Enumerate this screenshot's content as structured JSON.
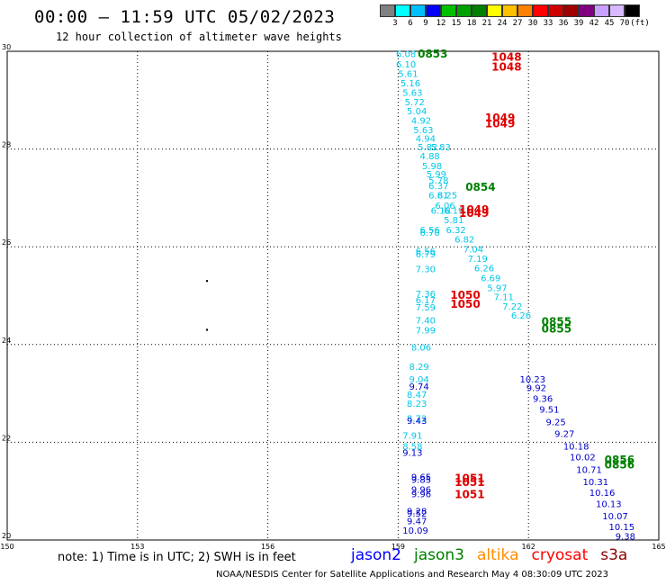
{
  "header": {
    "title": "00:00 – 11:59 UTC 05/02/2023",
    "subtitle": "12 hour collection of altimeter wave heights"
  },
  "colorbar": {
    "unit": "(ft)",
    "ticks": [
      "3",
      "6",
      "9",
      "12",
      "15",
      "18",
      "21",
      "24",
      "27",
      "30",
      "33",
      "36",
      "39",
      "42",
      "45",
      "70"
    ],
    "colors": [
      "#808080",
      "#00ffff",
      "#00bfff",
      "#0000ff",
      "#00c000",
      "#00a000",
      "#008000",
      "#ffff00",
      "#ffc000",
      "#ff8000",
      "#ff0000",
      "#d00000",
      "#a00000",
      "#800080",
      "#c8a0ff",
      "#d8b8ff",
      "#000000"
    ]
  },
  "footer": {
    "note": "note:  1) Time is in UTC;  2) SWH is in feet",
    "satellites": [
      {
        "name": "jason2",
        "color": "#0000ff"
      },
      {
        "name": "jason3",
        "color": "#008000"
      },
      {
        "name": "altika",
        "color": "#ff8c00"
      },
      {
        "name": "cryosat",
        "color": "#ff0000"
      },
      {
        "name": "s3a",
        "color": "#8b0000"
      }
    ],
    "credit": "NOAA/NESDIS Center for Satellite Applications and Research    May  4 08:30:09 UTC 2023"
  },
  "chart_data": {
    "type": "scatter",
    "title": "00:00 – 11:59 UTC 05/02/2023",
    "subtitle": "12 hour collection of altimeter wave heights",
    "xlim": [
      150,
      165
    ],
    "ylim": [
      20,
      30
    ],
    "xticks": [
      "150",
      "153",
      "156",
      "159",
      "162",
      "165"
    ],
    "yticks": [
      "20",
      "22",
      "24",
      "26",
      "28",
      "30"
    ],
    "grid": true,
    "series": [
      {
        "name": "cyan-track",
        "color": "#00c8e8",
        "points": [
          {
            "x": 158.95,
            "y": 29.95,
            "v": "6.08"
          },
          {
            "x": 158.95,
            "y": 29.74,
            "v": "6.10"
          },
          {
            "x": 159.0,
            "y": 29.55,
            "v": "5.61"
          },
          {
            "x": 159.05,
            "y": 29.36,
            "v": "5.16"
          },
          {
            "x": 159.1,
            "y": 29.16,
            "v": "5.63"
          },
          {
            "x": 159.15,
            "y": 28.97,
            "v": "5.72"
          },
          {
            "x": 159.2,
            "y": 28.78,
            "v": "5.04"
          },
          {
            "x": 159.3,
            "y": 28.59,
            "v": "4.92"
          },
          {
            "x": 159.35,
            "y": 28.4,
            "v": "5.63"
          },
          {
            "x": 159.4,
            "y": 28.22,
            "v": "4.94"
          },
          {
            "x": 159.45,
            "y": 28.05,
            "v": "5.82"
          },
          {
            "x": 159.75,
            "y": 28.05,
            "v": "5.83"
          },
          {
            "x": 159.5,
            "y": 27.86,
            "v": "4.88"
          },
          {
            "x": 159.55,
            "y": 27.66,
            "v": "5.98"
          },
          {
            "x": 159.65,
            "y": 27.5,
            "v": "5.99"
          },
          {
            "x": 159.7,
            "y": 27.37,
            "v": "5.78"
          },
          {
            "x": 159.7,
            "y": 27.26,
            "v": "6.37"
          },
          {
            "x": 159.7,
            "y": 27.06,
            "v": "6.81"
          },
          {
            "x": 159.9,
            "y": 27.06,
            "v": "6.25"
          },
          {
            "x": 159.85,
            "y": 26.85,
            "v": "6.06"
          },
          {
            "x": 159.75,
            "y": 26.75,
            "v": "6.18"
          },
          {
            "x": 160.05,
            "y": 26.75,
            "v": "6.19"
          },
          {
            "x": 160.05,
            "y": 26.56,
            "v": "5.81"
          },
          {
            "x": 159.5,
            "y": 26.35,
            "v": "6.56"
          },
          {
            "x": 159.5,
            "y": 26.3,
            "v": "6.70"
          },
          {
            "x": 160.1,
            "y": 26.35,
            "v": "6.32"
          },
          {
            "x": 160.3,
            "y": 26.16,
            "v": "6.82"
          },
          {
            "x": 160.5,
            "y": 25.96,
            "v": "7.04"
          },
          {
            "x": 159.4,
            "y": 25.92,
            "v": "6.56"
          },
          {
            "x": 159.4,
            "y": 25.86,
            "v": "6.79"
          },
          {
            "x": 160.6,
            "y": 25.76,
            "v": "7.19"
          },
          {
            "x": 159.4,
            "y": 25.55,
            "v": "7.30"
          },
          {
            "x": 160.75,
            "y": 25.57,
            "v": "6.26"
          },
          {
            "x": 160.9,
            "y": 25.37,
            "v": "6.69"
          },
          {
            "x": 161.05,
            "y": 25.17,
            "v": "5.97"
          },
          {
            "x": 159.4,
            "y": 25.05,
            "v": "7.36"
          },
          {
            "x": 161.2,
            "y": 24.98,
            "v": "7.11"
          },
          {
            "x": 159.4,
            "y": 24.92,
            "v": "6.17"
          },
          {
            "x": 159.4,
            "y": 24.77,
            "v": "7.59"
          },
          {
            "x": 161.4,
            "y": 24.79,
            "v": "7.22"
          },
          {
            "x": 161.6,
            "y": 24.6,
            "v": "6.26"
          },
          {
            "x": 159.4,
            "y": 24.5,
            "v": "7.40"
          },
          {
            "x": 159.4,
            "y": 24.3,
            "v": "7.99"
          },
          {
            "x": 159.3,
            "y": 23.95,
            "v": "8.06"
          },
          {
            "x": 159.25,
            "y": 23.55,
            "v": "8.29"
          },
          {
            "x": 159.25,
            "y": 23.3,
            "v": "9.04"
          },
          {
            "x": 159.2,
            "y": 22.98,
            "v": "8.47"
          },
          {
            "x": 159.2,
            "y": 22.8,
            "v": "8.23"
          },
          {
            "x": 159.2,
            "y": 22.5,
            "v": "8.72"
          },
          {
            "x": 159.1,
            "y": 22.15,
            "v": "7.91"
          },
          {
            "x": 159.1,
            "y": 21.92,
            "v": "8.58"
          }
        ]
      },
      {
        "name": "blue-track",
        "color": "#0000cc",
        "points": [
          {
            "x": 161.8,
            "y": 23.3,
            "v": "10.23"
          },
          {
            "x": 161.95,
            "y": 23.12,
            "v": "9.92"
          },
          {
            "x": 162.1,
            "y": 22.9,
            "v": "9.36"
          },
          {
            "x": 162.25,
            "y": 22.68,
            "v": "9.51"
          },
          {
            "x": 162.4,
            "y": 22.42,
            "v": "9.25"
          },
          {
            "x": 162.6,
            "y": 22.18,
            "v": "9.27"
          },
          {
            "x": 162.8,
            "y": 21.92,
            "v": "10.18"
          },
          {
            "x": 162.95,
            "y": 21.7,
            "v": "10.02"
          },
          {
            "x": 163.1,
            "y": 21.45,
            "v": "10.71"
          },
          {
            "x": 163.25,
            "y": 21.2,
            "v": "10.31"
          },
          {
            "x": 163.4,
            "y": 20.98,
            "v": "10.16"
          },
          {
            "x": 163.55,
            "y": 20.75,
            "v": "10.13"
          },
          {
            "x": 163.7,
            "y": 20.5,
            "v": "10.07"
          },
          {
            "x": 163.85,
            "y": 20.28,
            "v": "10.15"
          },
          {
            "x": 164.0,
            "y": 20.08,
            "v": "9.38"
          },
          {
            "x": 159.25,
            "y": 23.15,
            "v": "9.74"
          },
          {
            "x": 159.2,
            "y": 22.45,
            "v": "9.43"
          },
          {
            "x": 159.1,
            "y": 21.8,
            "v": "9.13"
          },
          {
            "x": 159.3,
            "y": 21.3,
            "v": "9.65"
          },
          {
            "x": 159.3,
            "y": 21.24,
            "v": "9.85"
          },
          {
            "x": 159.3,
            "y": 21.04,
            "v": "9.96"
          },
          {
            "x": 159.3,
            "y": 20.95,
            "v": "9.96"
          },
          {
            "x": 159.2,
            "y": 20.6,
            "v": "9.28"
          },
          {
            "x": 159.2,
            "y": 20.55,
            "v": "9.52"
          },
          {
            "x": 159.2,
            "y": 20.4,
            "v": "9.47"
          },
          {
            "x": 159.1,
            "y": 20.2,
            "v": "10.09"
          }
        ]
      }
    ],
    "time_labels": [
      {
        "x": 159.45,
        "y": 29.96,
        "t": "0853",
        "color": "#008000"
      },
      {
        "x": 161.15,
        "y": 29.9,
        "t": "1048",
        "color": "#e00000"
      },
      {
        "x": 161.15,
        "y": 29.7,
        "t": "1048",
        "color": "#e00000"
      },
      {
        "x": 161.0,
        "y": 28.66,
        "t": "1049",
        "color": "#e00000"
      },
      {
        "x": 161.0,
        "y": 28.54,
        "t": "1049",
        "color": "#e00000"
      },
      {
        "x": 160.55,
        "y": 27.24,
        "t": "0854",
        "color": "#008000"
      },
      {
        "x": 160.4,
        "y": 26.78,
        "t": "1049",
        "color": "#e00000"
      },
      {
        "x": 160.4,
        "y": 26.7,
        "t": "1049",
        "color": "#e00000"
      },
      {
        "x": 160.2,
        "y": 25.03,
        "t": "1050",
        "color": "#e00000"
      },
      {
        "x": 160.2,
        "y": 24.84,
        "t": "1050",
        "color": "#e00000"
      },
      {
        "x": 162.3,
        "y": 24.48,
        "t": "0855",
        "color": "#008000"
      },
      {
        "x": 162.3,
        "y": 24.34,
        "t": "0855",
        "color": "#008000"
      },
      {
        "x": 163.75,
        "y": 21.66,
        "t": "0856",
        "color": "#008000"
      },
      {
        "x": 163.75,
        "y": 21.56,
        "t": "0856",
        "color": "#008000"
      },
      {
        "x": 160.3,
        "y": 21.28,
        "t": "1051",
        "color": "#e00000"
      },
      {
        "x": 160.3,
        "y": 21.2,
        "t": "1051",
        "color": "#e00000"
      },
      {
        "x": 160.3,
        "y": 20.95,
        "t": "1051",
        "color": "#e00000"
      }
    ],
    "markers": [
      {
        "x": 154.6,
        "y": 25.3
      },
      {
        "x": 154.6,
        "y": 24.3
      }
    ]
  }
}
